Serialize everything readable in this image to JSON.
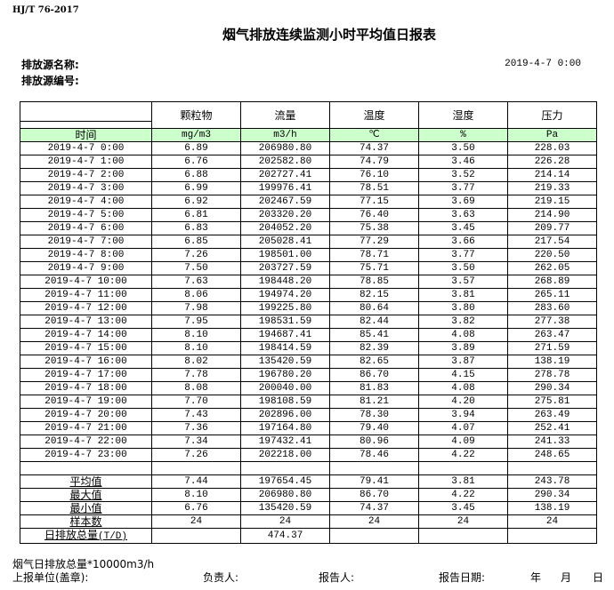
{
  "standard": "HJ/T  76-2017",
  "title": "烟气排放连续监测小时平均值日报表",
  "source_name_label": "排放源名称:",
  "source_id_label": "排放源编号:",
  "report_datetime": "2019-4-7 0:00",
  "table": {
    "headers": [
      "颗粒物",
      "流量",
      "温度",
      "湿度",
      "压力"
    ],
    "time_label": "时间",
    "units": [
      "mg/m3",
      "m3/h",
      "℃",
      "%",
      "Pa"
    ],
    "rows": [
      [
        "2019-4-7 0:00",
        "6.89",
        "206980.80",
        "74.37",
        "3.50",
        "228.03"
      ],
      [
        "2019-4-7 1:00",
        "6.76",
        "202582.80",
        "74.79",
        "3.46",
        "226.28"
      ],
      [
        "2019-4-7 2:00",
        "6.88",
        "202727.41",
        "76.10",
        "3.52",
        "214.14"
      ],
      [
        "2019-4-7 3:00",
        "6.99",
        "199976.41",
        "78.51",
        "3.77",
        "219.33"
      ],
      [
        "2019-4-7 4:00",
        "6.92",
        "202467.59",
        "77.15",
        "3.69",
        "219.15"
      ],
      [
        "2019-4-7 5:00",
        "6.81",
        "203320.20",
        "76.40",
        "3.63",
        "214.90"
      ],
      [
        "2019-4-7 6:00",
        "6.83",
        "204052.20",
        "75.38",
        "3.45",
        "209.77"
      ],
      [
        "2019-4-7 7:00",
        "6.85",
        "205028.41",
        "77.29",
        "3.66",
        "217.54"
      ],
      [
        "2019-4-7 8:00",
        "7.26",
        "198501.00",
        "78.71",
        "3.77",
        "220.50"
      ],
      [
        "2019-4-7 9:00",
        "7.50",
        "203727.59",
        "75.71",
        "3.50",
        "262.05"
      ],
      [
        "2019-4-7 10:00",
        "7.63",
        "198448.20",
        "78.85",
        "3.57",
        "268.89"
      ],
      [
        "2019-4-7 11:00",
        "8.06",
        "194974.20",
        "82.15",
        "3.81",
        "265.11"
      ],
      [
        "2019-4-7 12:00",
        "7.98",
        "199225.80",
        "80.64",
        "3.80",
        "283.60"
      ],
      [
        "2019-4-7 13:00",
        "7.95",
        "198531.59",
        "82.44",
        "3.82",
        "277.38"
      ],
      [
        "2019-4-7 14:00",
        "8.10",
        "194687.41",
        "85.41",
        "4.08",
        "263.47"
      ],
      [
        "2019-4-7 15:00",
        "8.10",
        "198414.59",
        "82.39",
        "3.89",
        "271.59"
      ],
      [
        "2019-4-7 16:00",
        "8.02",
        "135420.59",
        "82.65",
        "3.87",
        "138.19"
      ],
      [
        "2019-4-7 17:00",
        "7.78",
        "196780.20",
        "86.70",
        "4.15",
        "278.78"
      ],
      [
        "2019-4-7 18:00",
        "8.08",
        "200040.00",
        "81.83",
        "4.08",
        "290.34"
      ],
      [
        "2019-4-7 19:00",
        "7.70",
        "198108.59",
        "81.21",
        "4.20",
        "275.81"
      ],
      [
        "2019-4-7 20:00",
        "7.43",
        "202896.00",
        "78.30",
        "3.94",
        "263.49"
      ],
      [
        "2019-4-7 21:00",
        "7.36",
        "197164.80",
        "79.40",
        "4.07",
        "252.41"
      ],
      [
        "2019-4-7 22:00",
        "7.34",
        "197432.41",
        "80.96",
        "4.09",
        "241.33"
      ],
      [
        "2019-4-7 23:00",
        "7.26",
        "202218.00",
        "78.46",
        "4.22",
        "248.65"
      ]
    ],
    "summary": [
      [
        "平均值",
        "7.44",
        "197654.45",
        "79.41",
        "3.81",
        "243.78"
      ],
      [
        "最大值",
        "8.10",
        "206980.80",
        "86.70",
        "4.22",
        "290.34"
      ],
      [
        "最小值",
        "6.76",
        "135420.59",
        "74.37",
        "3.45",
        "138.19"
      ],
      [
        "样本数",
        "24",
        "24",
        "24",
        "24",
        "24"
      ]
    ],
    "daily_total_label": "日排放总量",
    "daily_total_unit": "(T/D)",
    "daily_total": [
      "",
      "474.37",
      "",
      "",
      ""
    ]
  },
  "footer": {
    "note": "烟气日排放总量*10000m3/h",
    "unit_label": "上报单位(盖章):",
    "responsible_label": "负责人:",
    "reporter_label": "报告人:",
    "report_date_label": "报告日期:",
    "year": "年",
    "month": "月",
    "day": "日"
  },
  "colors": {
    "unit_row_bg": "#ccffcc"
  }
}
